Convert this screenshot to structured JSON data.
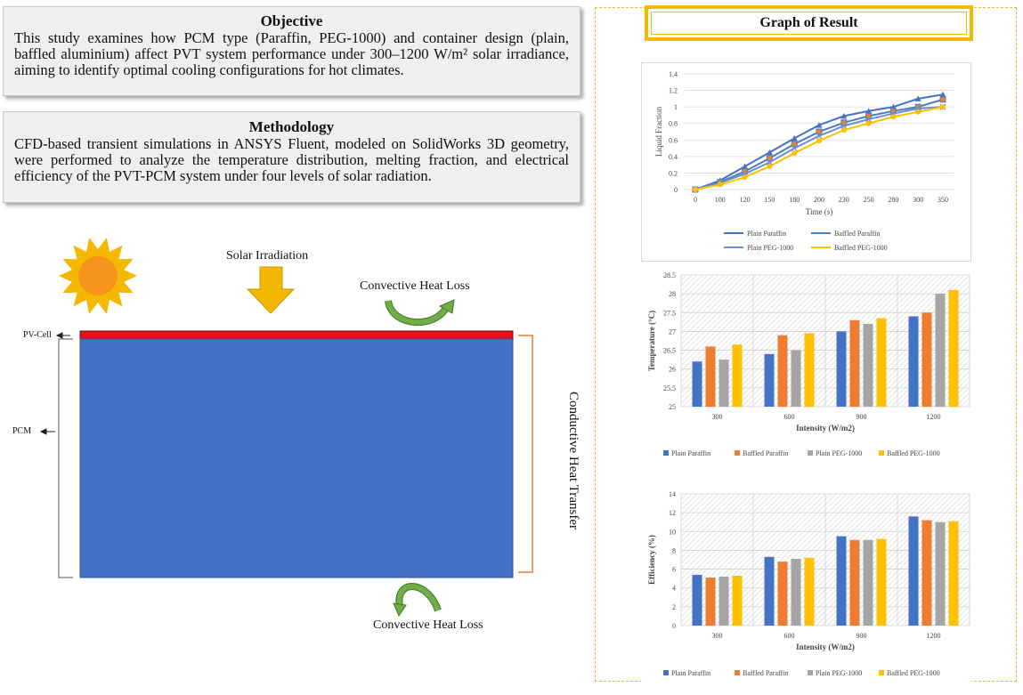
{
  "objective": {
    "title": "Objective",
    "text": "This study examines how PCM type (Paraffin, PEG-1000) and container design (plain, baffled aluminium) affect PVT system performance under 300–1200 W/m² solar irradiance, aiming to identify optimal cooling configurations for hot climates."
  },
  "methodology": {
    "title": "Methodology",
    "text": "CFD-based transient simulations in ANSYS Fluent, modeled on SolidWorks 3D geometry, were performed to analyze the temperature distribution, melting fraction, and electrical efficiency of the PVT-PCM system under four levels of solar radiation."
  },
  "diagram": {
    "solar_irradiation": "Solar Irradiation",
    "convective_top": "Convective Heat Loss",
    "convective_bottom": "Convective Heat Loss",
    "conductive": "Conductive Heat Transfer",
    "pv_cell": "PV-Cell",
    "pcm": "PCM",
    "colors": {
      "pv": "#e8101a",
      "pcm": "#4472c4",
      "arrow": "#f5b800",
      "curve": "#70ad47",
      "bracket": "#ed7d31"
    }
  },
  "results": {
    "title": "Graph of Result"
  },
  "chart_data": [
    {
      "type": "line",
      "xlabel": "Time (s)",
      "ylabel": "Liquid Fraction",
      "categories": [
        "0",
        "100",
        "120",
        "150",
        "180",
        "200",
        "230",
        "250",
        "280",
        "300",
        "350"
      ],
      "ylim": [
        0,
        1.4
      ],
      "yticks": [
        "0",
        "0.2",
        "0.4",
        "0.6",
        "0.8",
        "1",
        "1.2",
        "1.4"
      ],
      "series": [
        {
          "name": "Plain Paraffin",
          "color": "#4472c4",
          "marker": "triangle",
          "values": [
            0,
            0.11,
            0.28,
            0.45,
            0.62,
            0.78,
            0.89,
            0.95,
            1.0,
            1.1,
            1.15
          ]
        },
        {
          "name": "Baffled Paraffin",
          "color": "#4a7ec4",
          "marker": "square",
          "values": [
            0,
            0.09,
            0.22,
            0.38,
            0.55,
            0.7,
            0.81,
            0.89,
            0.95,
            1.0,
            1.09
          ]
        },
        {
          "name": "Plain PEG-1000",
          "color": "#6a8fd0",
          "marker": "x",
          "values": [
            0,
            0.08,
            0.19,
            0.33,
            0.5,
            0.65,
            0.77,
            0.85,
            0.92,
            0.98,
            1.0
          ]
        },
        {
          "name": "Baffled PEG-1000",
          "color": "#ffc000",
          "marker": "circle",
          "values": [
            0,
            0.06,
            0.15,
            0.28,
            0.44,
            0.59,
            0.72,
            0.8,
            0.88,
            0.94,
            1.0
          ]
        }
      ],
      "legend": "bottom"
    },
    {
      "type": "bar",
      "xlabel": "Intensity (W/m2)",
      "ylabel": "Temperature (°C)",
      "categories": [
        "300",
        "600",
        "900",
        "1200"
      ],
      "ylim": [
        25,
        28.5
      ],
      "yticks": [
        "25",
        "25.5",
        "26",
        "26.5",
        "27",
        "27.5",
        "28",
        "28.5"
      ],
      "series": [
        {
          "name": "Plain Paraffin",
          "color": "#4472c4",
          "values": [
            26.2,
            26.4,
            27.0,
            27.4
          ]
        },
        {
          "name": "Baffled Paraffin",
          "color": "#ed7d31",
          "values": [
            26.6,
            26.9,
            27.3,
            27.5
          ]
        },
        {
          "name": "Plain PEG-1000",
          "color": "#a5a5a5",
          "values": [
            26.25,
            26.5,
            27.2,
            28.0
          ]
        },
        {
          "name": "Baffled PEG-1000",
          "color": "#ffc000",
          "values": [
            26.65,
            26.95,
            27.35,
            28.1
          ]
        }
      ],
      "legend": "bottom"
    },
    {
      "type": "bar",
      "xlabel": "Intensity (W/m2)",
      "ylabel": "Efficiency (%)",
      "categories": [
        "300",
        "600",
        "900",
        "1200"
      ],
      "ylim": [
        0,
        14
      ],
      "yticks": [
        "0",
        "2",
        "4",
        "6",
        "8",
        "10",
        "12",
        "14"
      ],
      "series": [
        {
          "name": "Plain Paraffin",
          "color": "#4472c4",
          "values": [
            5.4,
            7.3,
            9.5,
            11.6
          ]
        },
        {
          "name": "Baffled Paraffin",
          "color": "#ed7d31",
          "values": [
            5.1,
            6.8,
            9.1,
            11.2
          ]
        },
        {
          "name": "Plain PEG-1000",
          "color": "#a5a5a5",
          "values": [
            5.2,
            7.1,
            9.1,
            11.0
          ]
        },
        {
          "name": "Baffled PEG-1000",
          "color": "#ffc000",
          "values": [
            5.3,
            7.2,
            9.2,
            11.1
          ]
        }
      ],
      "legend": "bottom"
    }
  ]
}
